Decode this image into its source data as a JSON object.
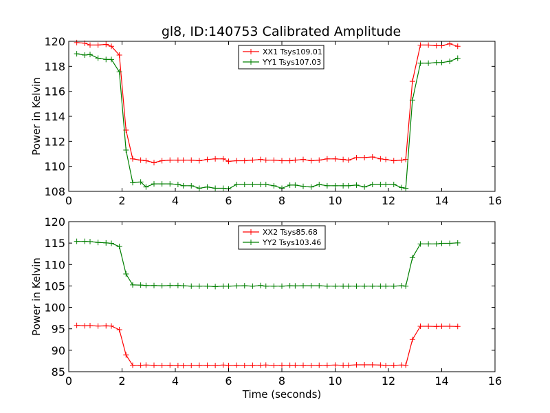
{
  "chart_data": [
    {
      "type": "line",
      "title": "gl8, ID:140753 Calibrated Amplitude",
      "xlabel": "",
      "ylabel": "Power in Kelvin",
      "xlim": [
        0,
        16
      ],
      "ylim": [
        108,
        120
      ],
      "xticks": [
        0,
        2,
        4,
        6,
        8,
        10,
        12,
        14,
        16
      ],
      "yticks": [
        108,
        110,
        112,
        114,
        116,
        118,
        120
      ],
      "legend_position": "top-center",
      "x": [
        0.3,
        0.6,
        0.8,
        1.1,
        1.4,
        1.6,
        1.9,
        2.15,
        2.4,
        2.7,
        2.9,
        3.2,
        3.5,
        3.8,
        4.1,
        4.3,
        4.6,
        4.9,
        5.2,
        5.5,
        5.8,
        6.0,
        6.3,
        6.6,
        6.9,
        7.2,
        7.4,
        7.7,
        8.0,
        8.3,
        8.5,
        8.8,
        9.1,
        9.4,
        9.7,
        10.0,
        10.3,
        10.5,
        10.8,
        11.1,
        11.4,
        11.7,
        11.9,
        12.2,
        12.5,
        12.65,
        12.9,
        13.2,
        13.5,
        13.8,
        14.0,
        14.3,
        14.6
      ],
      "series": [
        {
          "name": "XX1 Tsys109.01",
          "color": "#ff0000",
          "values": [
            119.9,
            119.85,
            119.7,
            119.7,
            119.75,
            119.6,
            118.9,
            112.9,
            110.6,
            110.5,
            110.45,
            110.3,
            110.45,
            110.5,
            110.5,
            110.5,
            110.5,
            110.45,
            110.55,
            110.6,
            110.6,
            110.4,
            110.45,
            110.45,
            110.5,
            110.55,
            110.5,
            110.5,
            110.45,
            110.45,
            110.5,
            110.55,
            110.45,
            110.5,
            110.6,
            110.6,
            110.55,
            110.5,
            110.7,
            110.7,
            110.75,
            110.6,
            110.55,
            110.45,
            110.5,
            110.55,
            116.8,
            119.7,
            119.7,
            119.65,
            119.65,
            119.8,
            119.6
          ]
        },
        {
          "name": "YY1 Tsys107.03",
          "color": "#007f00",
          "values": [
            119.0,
            118.9,
            118.95,
            118.65,
            118.55,
            118.55,
            117.55,
            111.3,
            108.7,
            108.75,
            108.35,
            108.6,
            108.6,
            108.6,
            108.55,
            108.45,
            108.45,
            108.25,
            108.35,
            108.25,
            108.25,
            108.2,
            108.55,
            108.55,
            108.55,
            108.55,
            108.55,
            108.45,
            108.25,
            108.5,
            108.5,
            108.4,
            108.35,
            108.55,
            108.45,
            108.45,
            108.45,
            108.45,
            108.5,
            108.35,
            108.55,
            108.55,
            108.55,
            108.55,
            108.3,
            108.25,
            115.3,
            118.25,
            118.25,
            118.3,
            118.3,
            118.4,
            118.65
          ]
        }
      ]
    },
    {
      "type": "line",
      "title": "",
      "xlabel": "Time (seconds)",
      "ylabel": "Power in Kelvin",
      "xlim": [
        0,
        16
      ],
      "ylim": [
        85,
        120
      ],
      "xticks": [
        0,
        2,
        4,
        6,
        8,
        10,
        12,
        14,
        16
      ],
      "yticks": [
        85,
        90,
        95,
        100,
        105,
        110,
        115,
        120
      ],
      "legend_position": "top-center",
      "x": [
        0.3,
        0.6,
        0.8,
        1.1,
        1.4,
        1.6,
        1.9,
        2.15,
        2.4,
        2.7,
        2.9,
        3.2,
        3.5,
        3.8,
        4.1,
        4.3,
        4.6,
        4.9,
        5.2,
        5.5,
        5.8,
        6.0,
        6.3,
        6.6,
        6.9,
        7.2,
        7.4,
        7.7,
        8.0,
        8.3,
        8.5,
        8.8,
        9.1,
        9.4,
        9.7,
        10.0,
        10.3,
        10.5,
        10.8,
        11.1,
        11.4,
        11.7,
        11.9,
        12.2,
        12.5,
        12.65,
        12.9,
        13.2,
        13.5,
        13.8,
        14.0,
        14.3,
        14.6
      ],
      "series": [
        {
          "name": "XX2 Tsys85.68",
          "color": "#ff0000",
          "values": [
            95.8,
            95.7,
            95.75,
            95.65,
            95.7,
            95.65,
            94.8,
            88.9,
            86.5,
            86.5,
            86.55,
            86.5,
            86.45,
            86.5,
            86.45,
            86.4,
            86.45,
            86.5,
            86.5,
            86.45,
            86.55,
            86.45,
            86.5,
            86.45,
            86.5,
            86.5,
            86.55,
            86.45,
            86.5,
            86.5,
            86.5,
            86.5,
            86.45,
            86.5,
            86.5,
            86.55,
            86.5,
            86.5,
            86.6,
            86.6,
            86.6,
            86.55,
            86.45,
            86.5,
            86.55,
            86.5,
            92.5,
            95.6,
            95.6,
            95.55,
            95.6,
            95.6,
            95.55
          ]
        },
        {
          "name": "YY2 Tsys103.46",
          "color": "#007f00",
          "values": [
            115.4,
            115.4,
            115.35,
            115.15,
            115.05,
            114.95,
            114.2,
            107.8,
            105.25,
            105.2,
            105.1,
            105.1,
            105.05,
            105.1,
            105.1,
            105.05,
            104.95,
            104.95,
            104.95,
            104.85,
            104.95,
            104.95,
            105.0,
            105.05,
            104.95,
            105.1,
            104.95,
            104.95,
            104.95,
            105.05,
            105.0,
            105.05,
            105.05,
            105.05,
            104.95,
            104.95,
            104.95,
            104.95,
            104.95,
            104.95,
            104.95,
            104.95,
            104.95,
            104.95,
            105.05,
            104.95,
            111.6,
            114.8,
            114.8,
            114.8,
            114.95,
            114.95,
            115.05
          ]
        }
      ]
    }
  ]
}
